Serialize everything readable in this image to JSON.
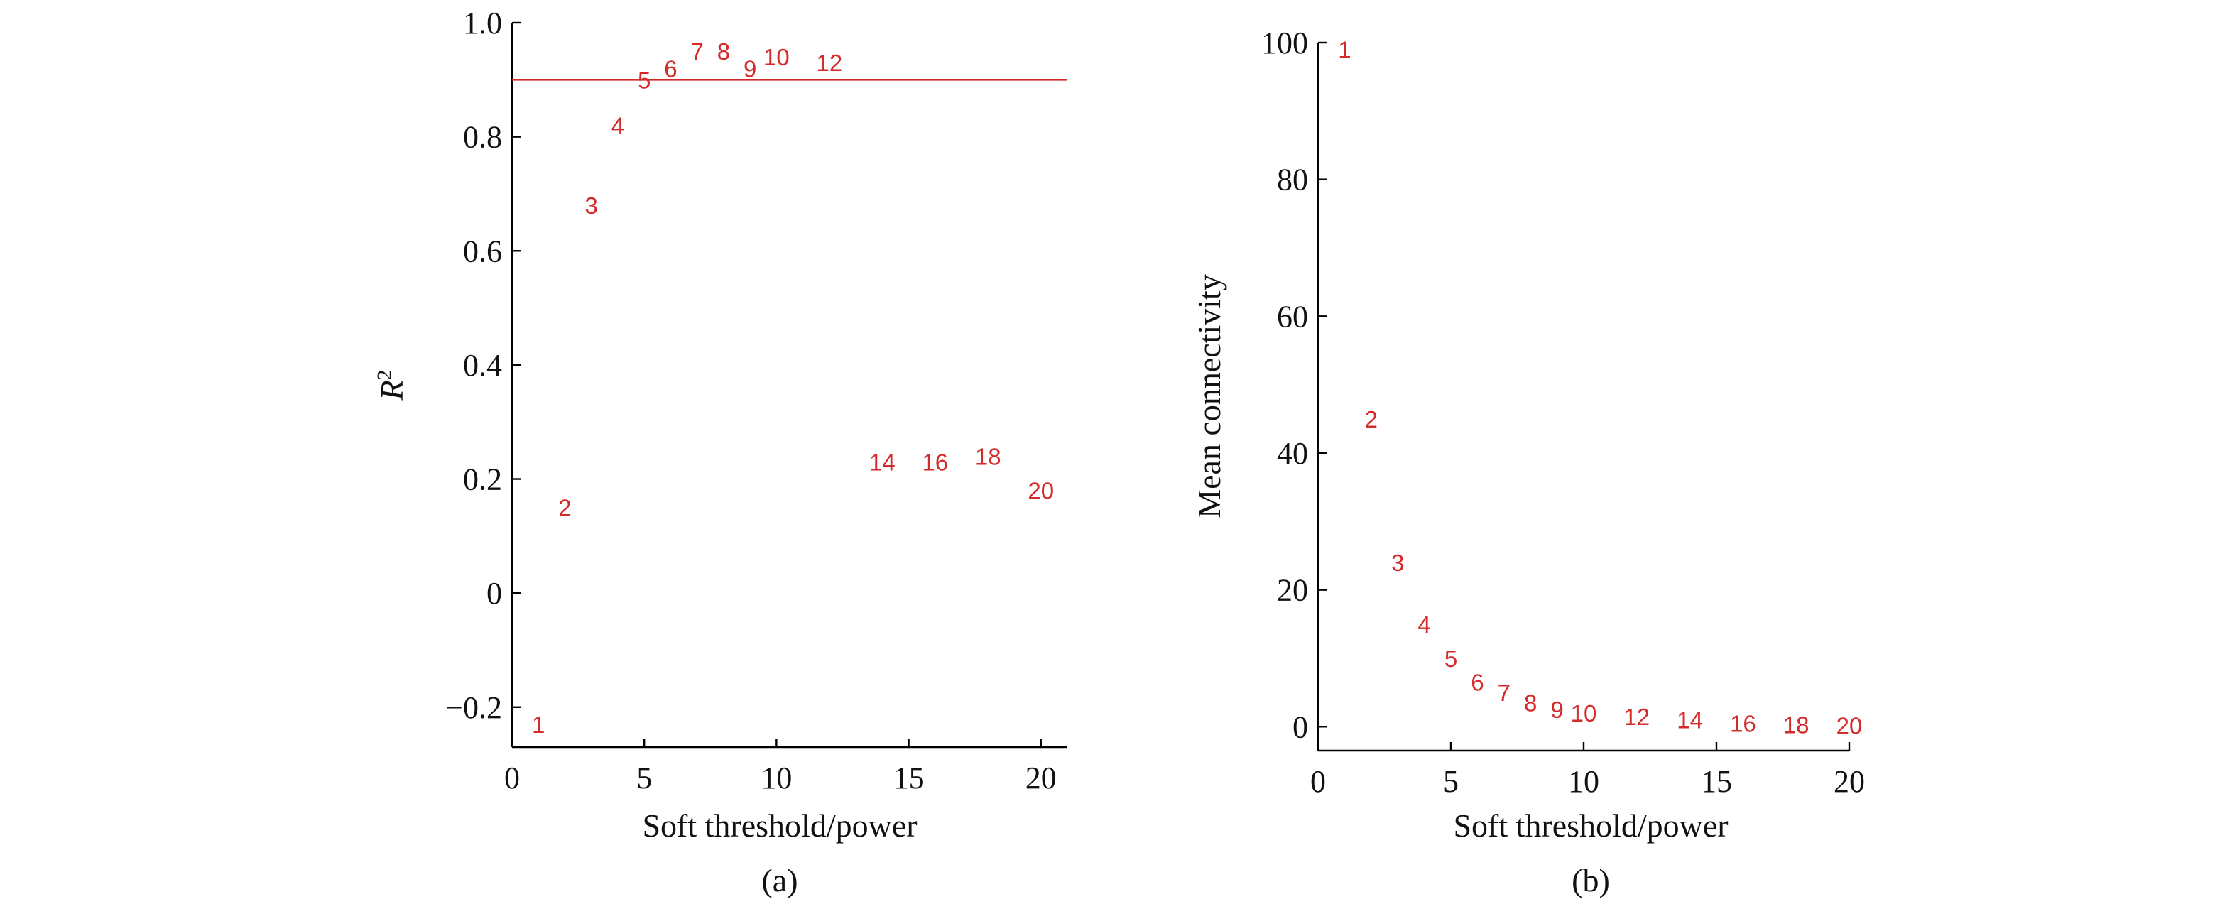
{
  "colors": {
    "points": "#d42a2a",
    "threshold_line": "#d42a2a",
    "axes": "#000000"
  },
  "chart_data": [
    {
      "type": "scatter",
      "panel": "(a)",
      "xlabel": "Soft threshold/power",
      "ylabel_main": "R",
      "ylabel_sup": "2",
      "xlim": [
        0,
        21
      ],
      "ylim": [
        -0.27,
        1.0
      ],
      "xticks": [
        0,
        5,
        10,
        15,
        20
      ],
      "yticks": [
        {
          "value": -0.2,
          "label": "−0.2"
        },
        {
          "value": 0,
          "label": "0"
        },
        {
          "value": 0.2,
          "label": "0.2"
        },
        {
          "value": 0.4,
          "label": "0.4"
        },
        {
          "value": 0.6,
          "label": "0.6"
        },
        {
          "value": 0.8,
          "label": "0.8"
        },
        {
          "value": 1.0,
          "label": "1.0"
        }
      ],
      "hline": 0.9,
      "grid": false,
      "points": [
        {
          "x": 1,
          "y": -0.23,
          "label": "1"
        },
        {
          "x": 2,
          "y": 0.15,
          "label": "2"
        },
        {
          "x": 3,
          "y": 0.68,
          "label": "3"
        },
        {
          "x": 4,
          "y": 0.82,
          "label": "4"
        },
        {
          "x": 5,
          "y": 0.9,
          "label": "5"
        },
        {
          "x": 6,
          "y": 0.92,
          "label": "6"
        },
        {
          "x": 7,
          "y": 0.95,
          "label": "7"
        },
        {
          "x": 8,
          "y": 0.95,
          "label": "8"
        },
        {
          "x": 9,
          "y": 0.92,
          "label": "9"
        },
        {
          "x": 10,
          "y": 0.94,
          "label": "10"
        },
        {
          "x": 12,
          "y": 0.93,
          "label": "12"
        },
        {
          "x": 14,
          "y": 0.23,
          "label": "14"
        },
        {
          "x": 16,
          "y": 0.23,
          "label": "16"
        },
        {
          "x": 18,
          "y": 0.24,
          "label": "18"
        },
        {
          "x": 20,
          "y": 0.18,
          "label": "20"
        }
      ]
    },
    {
      "type": "scatter",
      "panel": "(b)",
      "xlabel": "Soft threshold/power",
      "ylabel_main": "Mean connectivity",
      "ylabel_sup": "",
      "xlim": [
        0,
        20
      ],
      "ylim": [
        -3.5,
        100
      ],
      "xticks": [
        0,
        5,
        10,
        15,
        20
      ],
      "yticks": [
        {
          "value": 0,
          "label": "0"
        },
        {
          "value": 20,
          "label": "20"
        },
        {
          "value": 40,
          "label": "40"
        },
        {
          "value": 60,
          "label": "60"
        },
        {
          "value": 80,
          "label": "80"
        },
        {
          "value": 100,
          "label": "100"
        }
      ],
      "hline": null,
      "grid": false,
      "points": [
        {
          "x": 1,
          "y": 99,
          "label": "1"
        },
        {
          "x": 2,
          "y": 45,
          "label": "2"
        },
        {
          "x": 3,
          "y": 24,
          "label": "3"
        },
        {
          "x": 4,
          "y": 15,
          "label": "4"
        },
        {
          "x": 5,
          "y": 10,
          "label": "5"
        },
        {
          "x": 6,
          "y": 6.5,
          "label": "6"
        },
        {
          "x": 7,
          "y": 5,
          "label": "7"
        },
        {
          "x": 8,
          "y": 3.5,
          "label": "8"
        },
        {
          "x": 9,
          "y": 2.5,
          "label": "9"
        },
        {
          "x": 10,
          "y": 2,
          "label": "10"
        },
        {
          "x": 12,
          "y": 1.5,
          "label": "12"
        },
        {
          "x": 14,
          "y": 1,
          "label": "14"
        },
        {
          "x": 16,
          "y": 0.5,
          "label": "16"
        },
        {
          "x": 18,
          "y": 0.3,
          "label": "18"
        },
        {
          "x": 20,
          "y": 0.2,
          "label": "20"
        }
      ]
    }
  ]
}
